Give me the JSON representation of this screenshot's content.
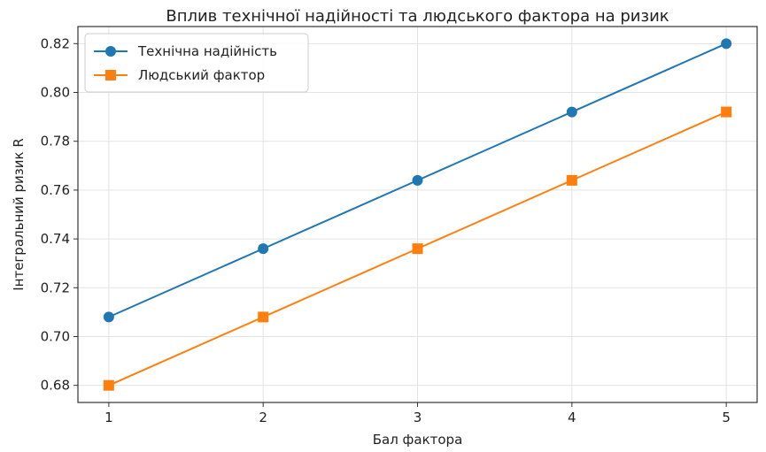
{
  "chart_data": {
    "type": "line",
    "title": "Вплив технічної надійності та людського фактора на ризик",
    "xlabel": "Бал фактора",
    "ylabel": "Інтегральний ризик R",
    "x": [
      1,
      2,
      3,
      4,
      5
    ],
    "x_tick_labels": [
      "1",
      "2",
      "3",
      "4",
      "5"
    ],
    "xlim": [
      0.8,
      5.2
    ],
    "ylim": [
      0.673,
      0.827
    ],
    "y_ticks": [
      0.68,
      0.7,
      0.72,
      0.74,
      0.76,
      0.78,
      0.8,
      0.82
    ],
    "y_tick_labels": [
      "0.68",
      "0.70",
      "0.72",
      "0.74",
      "0.76",
      "0.78",
      "0.80",
      "0.82"
    ],
    "grid": true,
    "legend_position": "top-left",
    "series": [
      {
        "name": "Технічна надійність",
        "values": [
          0.708,
          0.736,
          0.764,
          0.792,
          0.82
        ],
        "color": "#1f77b4",
        "marker": "circle"
      },
      {
        "name": "Людський фактор",
        "values": [
          0.68,
          0.708,
          0.736,
          0.764,
          0.792
        ],
        "color": "#ff7f0e",
        "marker": "square"
      }
    ]
  }
}
